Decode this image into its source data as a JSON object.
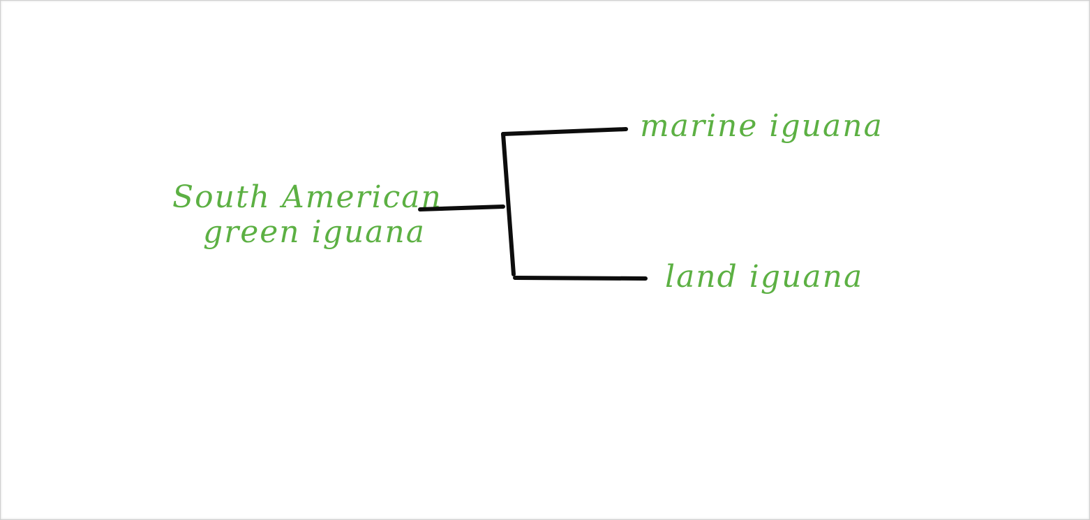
{
  "tree": {
    "root": {
      "line1": "South American",
      "line2": "green iguana"
    },
    "leaves": [
      {
        "label": "marine iguana"
      },
      {
        "label": "land iguana"
      }
    ]
  },
  "colors": {
    "label": "#5cb043",
    "branch": "#0d0d0d"
  }
}
